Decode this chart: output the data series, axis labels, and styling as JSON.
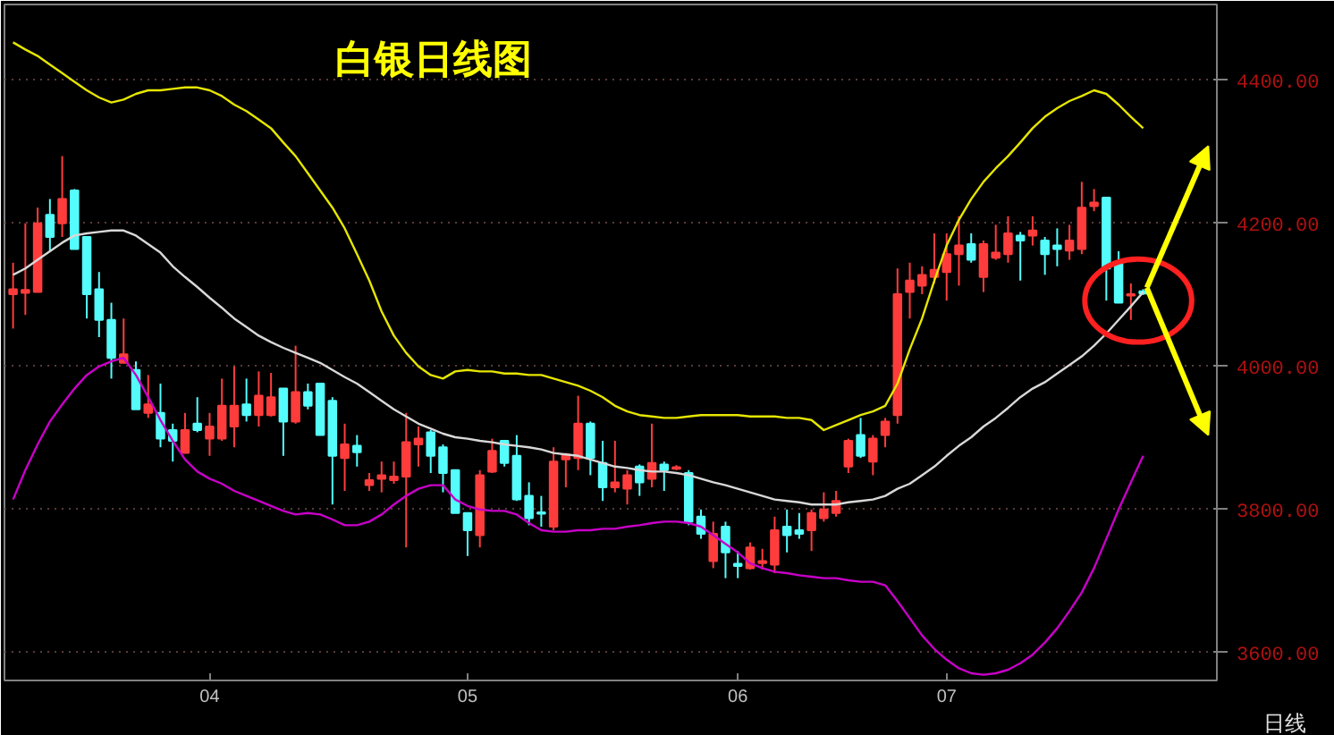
{
  "chart_data": {
    "type": "candlestick",
    "title": "白银日线图",
    "xlabel": "日线",
    "categories": [
      null,
      null,
      null,
      null,
      null,
      null,
      null,
      null,
      null,
      null,
      null,
      null,
      null,
      null,
      null,
      null,
      "04",
      null,
      null,
      null,
      null,
      null,
      null,
      null,
      null,
      null,
      null,
      null,
      null,
      null,
      null,
      null,
      null,
      null,
      null,
      null,
      null,
      "05",
      null,
      null,
      null,
      null,
      null,
      null,
      null,
      null,
      null,
      null,
      null,
      null,
      null,
      null,
      null,
      null,
      null,
      null,
      null,
      null,
      null,
      "06",
      null,
      null,
      null,
      null,
      null,
      null,
      null,
      null,
      null,
      null,
      null,
      null,
      null,
      null,
      null,
      null,
      "07",
      null,
      null,
      null,
      null,
      null,
      null,
      null,
      null,
      null,
      null,
      null,
      null,
      null,
      null,
      null,
      null
    ],
    "ohlc": [
      [
        4101,
        4145,
        4053,
        4108
      ],
      [
        4103,
        4200,
        4072,
        4107
      ],
      [
        4104,
        4222,
        4104,
        4200
      ],
      [
        4212,
        4234,
        4161,
        4181
      ],
      [
        4200,
        4294,
        4181,
        4234
      ],
      [
        4246,
        4248,
        4164,
        4164
      ],
      [
        4181,
        4181,
        4067,
        4101
      ],
      [
        4108,
        4132,
        4041,
        4065
      ],
      [
        4065,
        4089,
        3983,
        4012
      ],
      [
        4005,
        4067,
        4005,
        4017
      ],
      [
        3995,
        4007,
        3940,
        3940
      ],
      [
        3935,
        3988,
        3928,
        3947
      ],
      [
        3935,
        3976,
        3887,
        3899
      ],
      [
        3911,
        3920,
        3867,
        3896
      ],
      [
        3879,
        3935,
        3879,
        3911
      ],
      [
        3920,
        3957,
        3908,
        3911
      ],
      [
        3899,
        3935,
        3875,
        3916
      ],
      [
        3899,
        3983,
        3896,
        3945
      ],
      [
        3916,
        4000,
        3887,
        3945
      ],
      [
        3947,
        3983,
        3923,
        3932
      ],
      [
        3932,
        3993,
        3916,
        3959
      ],
      [
        3932,
        3991,
        3930,
        3957
      ],
      [
        3969,
        3969,
        3875,
        3923
      ],
      [
        3923,
        4029,
        3920,
        3964
      ],
      [
        3964,
        3976,
        3940,
        3945
      ],
      [
        3976,
        3976,
        3904,
        3904
      ],
      [
        3952,
        3957,
        3807,
        3875
      ],
      [
        3872,
        3920,
        3826,
        3891
      ],
      [
        3889,
        3904,
        3860,
        3880
      ],
      [
        3834,
        3851,
        3826,
        3841
      ],
      [
        3843,
        3867,
        3824,
        3848
      ],
      [
        3841,
        3867,
        3836,
        3846
      ],
      [
        3846,
        3935,
        3747,
        3894
      ],
      [
        3891,
        3916,
        3860,
        3899
      ],
      [
        3908,
        3911,
        3851,
        3875
      ],
      [
        3887,
        3891,
        3824,
        3851
      ],
      [
        3855,
        3855,
        3795,
        3795
      ],
      [
        3795,
        3795,
        3735,
        3771
      ],
      [
        3764,
        3855,
        3747,
        3848
      ],
      [
        3853,
        3899,
        3851,
        3882
      ],
      [
        3896,
        3896,
        3860,
        3865
      ],
      [
        3875,
        3904,
        3812,
        3814
      ],
      [
        3819,
        3838,
        3778,
        3788
      ],
      [
        3796,
        3819,
        3776,
        3794
      ],
      [
        3776,
        3887,
        3771,
        3867
      ],
      [
        3870,
        3879,
        3831,
        3877
      ],
      [
        3872,
        3959,
        3855,
        3920
      ],
      [
        3920,
        3923,
        3848,
        3872
      ],
      [
        3865,
        3896,
        3812,
        3831
      ],
      [
        3831,
        3896,
        3824,
        3838
      ],
      [
        3829,
        3855,
        3807,
        3848
      ],
      [
        3860,
        3863,
        3819,
        3838
      ],
      [
        3843,
        3920,
        3831,
        3865
      ],
      [
        3863,
        3867,
        3826,
        3855
      ],
      [
        3857,
        3862,
        3855,
        3859
      ],
      [
        3851,
        3855,
        3778,
        3783
      ],
      [
        3790,
        3800,
        3759,
        3766
      ],
      [
        3728,
        3783,
        3718,
        3766
      ],
      [
        3776,
        3783,
        3704,
        3740
      ],
      [
        3724,
        3742,
        3704,
        3721
      ],
      [
        3718,
        3754,
        3716,
        3747
      ],
      [
        3725,
        3745,
        3716,
        3728
      ],
      [
        3723,
        3790,
        3711,
        3771
      ],
      [
        3776,
        3800,
        3740,
        3764
      ],
      [
        3771,
        3795,
        3759,
        3766
      ],
      [
        3771,
        3800,
        3742,
        3795
      ],
      [
        3788,
        3824,
        3783,
        3800
      ],
      [
        3795,
        3826,
        3790,
        3812
      ],
      [
        3860,
        3899,
        3851,
        3896
      ],
      [
        3904,
        3928,
        3872,
        3875
      ],
      [
        3867,
        3904,
        3848,
        3899
      ],
      [
        3904,
        3928,
        3887,
        3923
      ],
      [
        3932,
        4137,
        3920,
        4101
      ],
      [
        4104,
        4145,
        4067,
        4120
      ],
      [
        4113,
        4140,
        4101,
        4128
      ],
      [
        4125,
        4186,
        4116,
        4135
      ],
      [
        4132,
        4186,
        4092,
        4157
      ],
      [
        4157,
        4210,
        4113,
        4169
      ],
      [
        4171,
        4186,
        4145,
        4149
      ],
      [
        4125,
        4176,
        4104,
        4171
      ],
      [
        4152,
        4198,
        4149,
        4159
      ],
      [
        4157,
        4210,
        4145,
        4186
      ],
      [
        4183,
        4188,
        4120,
        4176
      ],
      [
        4183,
        4210,
        4169,
        4190
      ],
      [
        4176,
        4181,
        4128,
        4157
      ],
      [
        4169,
        4193,
        4140,
        4164
      ],
      [
        4162,
        4198,
        4149,
        4176
      ],
      [
        4164,
        4258,
        4157,
        4222
      ],
      [
        4224,
        4248,
        4217,
        4229
      ],
      [
        4236,
        4236,
        4092,
        4137
      ],
      [
        4145,
        4161,
        4089,
        4089
      ],
      [
        4099,
        4116,
        4065,
        4101
      ],
      [
        4105,
        4108,
        4100,
        4102
      ]
    ],
    "colors": [
      "#ff3c3c",
      "#ff3c3c",
      "#ff3c3c",
      "#54fcfc",
      "#ff3c3c",
      "#54fcfc",
      "#54fcfc",
      "#54fcfc",
      "#54fcfc",
      "#ff3c3c",
      "#54fcfc",
      "#ff3c3c",
      "#54fcfc",
      "#54fcfc",
      "#ff3c3c",
      "#54fcfc",
      "#ff3c3c",
      "#ff3c3c",
      "#ff3c3c",
      "#54fcfc",
      "#ff3c3c",
      "#ff3c3c",
      "#54fcfc",
      "#ff3c3c",
      "#54fcfc",
      "#54fcfc",
      "#54fcfc",
      "#ff3c3c",
      "#54fcfc",
      "#ff3c3c",
      "#ff3c3c",
      "#ff3c3c",
      "#ff3c3c",
      "#ff3c3c",
      "#54fcfc",
      "#54fcfc",
      "#54fcfc",
      "#54fcfc",
      "#ff3c3c",
      "#ff3c3c",
      "#54fcfc",
      "#54fcfc",
      "#54fcfc",
      "#54fcfc",
      "#ff3c3c",
      "#ff3c3c",
      "#ff3c3c",
      "#54fcfc",
      "#54fcfc",
      "#ff3c3c",
      "#ff3c3c",
      "#54fcfc",
      "#ff3c3c",
      "#54fcfc",
      "#ff3c3c",
      "#54fcfc",
      "#54fcfc",
      "#ff3c3c",
      "#54fcfc",
      "#54fcfc",
      "#ff3c3c",
      "#ff3c3c",
      "#ff3c3c",
      "#54fcfc",
      "#54fcfc",
      "#ff3c3c",
      "#ff3c3c",
      "#ff3c3c",
      "#ff3c3c",
      "#54fcfc",
      "#ff3c3c",
      "#ff3c3c",
      "#ff3c3c",
      "#ff3c3c",
      "#ff3c3c",
      "#ff3c3c",
      "#ff3c3c",
      "#ff3c3c",
      "#54fcfc",
      "#ff3c3c",
      "#ff3c3c",
      "#ff3c3c",
      "#54fcfc",
      "#ff3c3c",
      "#54fcfc",
      "#54fcfc",
      "#ff3c3c",
      "#ff3c3c",
      "#ff3c3c",
      "#54fcfc",
      "#54fcfc",
      "#ff3c3c",
      "#54fcfc"
    ],
    "series": [
      {
        "type": "line",
        "color": "#e6e600",
        "values": [
          4453,
          4443,
          4434,
          4422,
          4410,
          4398,
          4386,
          4376,
          4369,
          4373,
          4381,
          4386,
          4386,
          4388,
          4390,
          4390,
          4386,
          4378,
          4366,
          4357,
          4345,
          4333,
          4313,
          4294,
          4270,
          4246,
          4222,
          4193,
          4157,
          4120,
          4077,
          4043,
          4019,
          4000,
          3988,
          3983,
          3993,
          3995,
          3993,
          3993,
          3990,
          3990,
          3988,
          3988,
          3983,
          3978,
          3973,
          3966,
          3957,
          3945,
          3937,
          3932,
          3930,
          3928,
          3928,
          3930,
          3932,
          3932,
          3932,
          3932,
          3930,
          3930,
          3930,
          3928,
          3928,
          3925,
          3911,
          3918,
          3925,
          3932,
          3937,
          3945,
          3976,
          4024,
          4067,
          4120,
          4169,
          4205,
          4234,
          4258,
          4277,
          4294,
          4313,
          4333,
          4349,
          4361,
          4371,
          4378,
          4386,
          4381,
          4366,
          4349,
          4333
        ]
      },
      {
        "type": "line",
        "color": "#d8d8d8",
        "values": [
          4128,
          4137,
          4149,
          4161,
          4173,
          4183,
          4186,
          4188,
          4190,
          4190,
          4183,
          4171,
          4159,
          4140,
          4125,
          4111,
          4096,
          4082,
          4067,
          4055,
          4043,
          4034,
          4026,
          4019,
          4012,
          4005,
          3995,
          3985,
          3976,
          3964,
          3952,
          3940,
          3930,
          3920,
          3913,
          3906,
          3901,
          3899,
          3896,
          3894,
          3891,
          3889,
          3887,
          3884,
          3879,
          3877,
          3875,
          3870,
          3865,
          3860,
          3858,
          3855,
          3853,
          3853,
          3851,
          3848,
          3843,
          3838,
          3834,
          3829,
          3824,
          3819,
          3814,
          3812,
          3810,
          3807,
          3807,
          3807,
          3810,
          3812,
          3814,
          3819,
          3829,
          3836,
          3848,
          3860,
          3875,
          3889,
          3901,
          3916,
          3928,
          3942,
          3957,
          3969,
          3978,
          3990,
          4002,
          4014,
          4029,
          4046,
          4065,
          4084,
          4104
        ]
      },
      {
        "type": "line",
        "color": "#c800c8",
        "values": [
          3814,
          3855,
          3891,
          3923,
          3947,
          3969,
          3988,
          4000,
          4007,
          4012,
          3988,
          3957,
          3925,
          3896,
          3870,
          3853,
          3843,
          3836,
          3826,
          3819,
          3812,
          3805,
          3798,
          3793,
          3795,
          3793,
          3786,
          3778,
          3778,
          3783,
          3793,
          3807,
          3819,
          3829,
          3834,
          3834,
          3814,
          3805,
          3800,
          3798,
          3798,
          3793,
          3781,
          3771,
          3769,
          3769,
          3771,
          3771,
          3773,
          3773,
          3776,
          3778,
          3781,
          3783,
          3783,
          3781,
          3776,
          3764,
          3752,
          3740,
          3725,
          3718,
          3713,
          3711,
          3708,
          3706,
          3704,
          3704,
          3701,
          3699,
          3699,
          3694,
          3672,
          3648,
          3624,
          3605,
          3590,
          3578,
          3571,
          3569,
          3571,
          3576,
          3585,
          3597,
          3614,
          3634,
          3658,
          3684,
          3718,
          3759,
          3800,
          3838,
          3875
        ]
      }
    ],
    "ylim": [
      3561,
      4506
    ],
    "yticks": [
      {
        "value": 3600,
        "label": "3600.00"
      },
      {
        "value": 3800,
        "label": "3800.00"
      },
      {
        "value": 4000,
        "label": "4000.00"
      },
      {
        "value": 4200,
        "label": "4200.00"
      },
      {
        "value": 4400,
        "label": "4400.00"
      }
    ],
    "grid": "y"
  }
}
